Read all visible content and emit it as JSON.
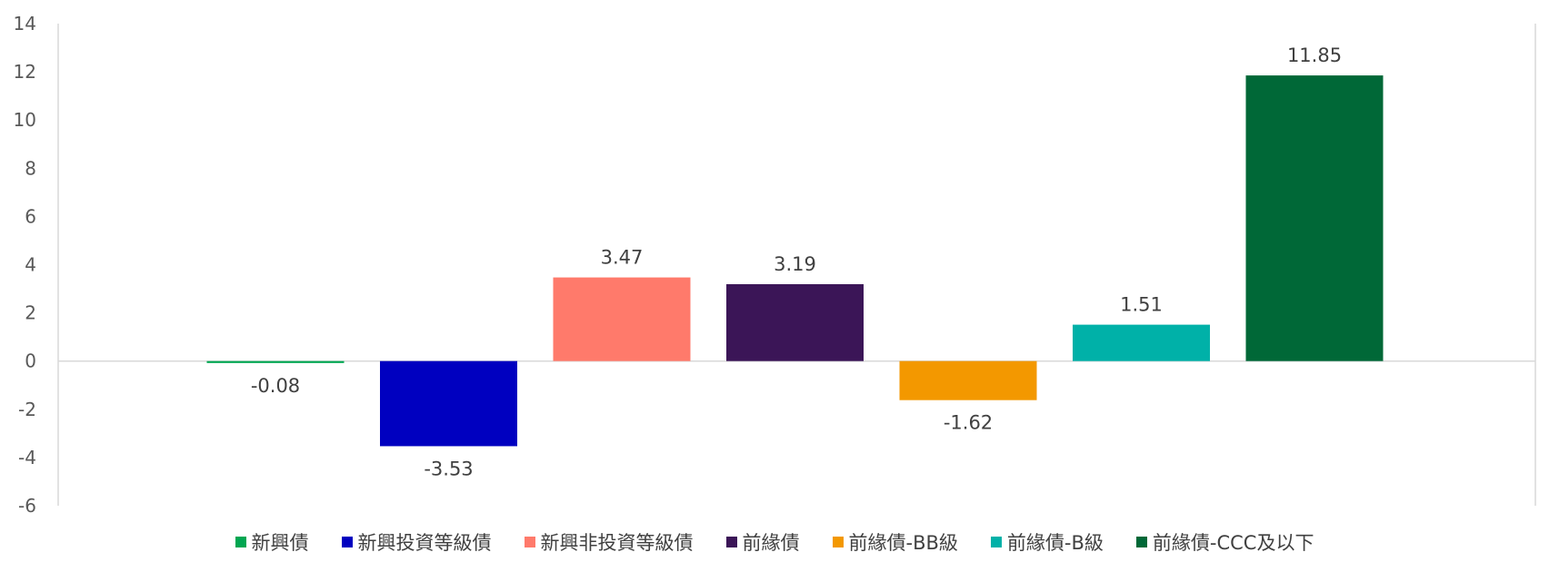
{
  "chart_data": {
    "type": "bar",
    "title": "",
    "xlabel": "",
    "ylabel": "",
    "ylim": [
      -6,
      14
    ],
    "yticks": [
      14,
      12,
      10,
      8,
      6,
      4,
      2,
      0,
      -2,
      -4,
      -6
    ],
    "grid": false,
    "legend_position": "bottom",
    "categories": [
      "新興債",
      "新興投資等級債",
      "新興非投資等級債",
      "前緣債",
      "前緣債-BB級",
      "前緣債-B級",
      "前緣債-CCC及以下"
    ],
    "values": [
      -0.08,
      -3.53,
      3.47,
      3.19,
      -1.62,
      1.51,
      11.85
    ],
    "value_labels": [
      "-0.08",
      "-3.53",
      "3.47",
      "3.19",
      "-1.62",
      "1.51",
      "11.85"
    ],
    "colors": [
      "#00a651",
      "#0000c0",
      "#ff7a6b",
      "#3b1557",
      "#f39800",
      "#00b1a8",
      "#006837"
    ]
  }
}
